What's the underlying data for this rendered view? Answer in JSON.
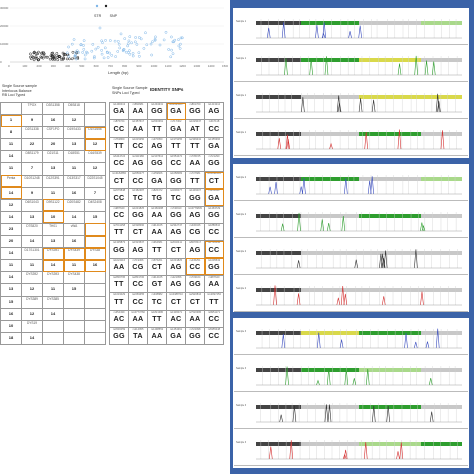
{
  "scatter": {
    "legend": [
      "STR",
      "SNP"
    ],
    "colors": {
      "str": "#1f1f1f",
      "snp": "#7eb6e8"
    },
    "xlabel": "Length (bp)",
    "xticks": [
      "0",
      "100",
      "200",
      "300",
      "400",
      "500",
      "600",
      "700",
      "800",
      "900",
      "1000",
      "1100",
      "1200",
      "1300",
      "1400",
      "1500"
    ],
    "yticks": [
      "30000",
      "20000",
      "10000",
      "0"
    ]
  },
  "identity_title": "IDENTITY SNPs",
  "left_legend": [
    "Single Source sample",
    "Interlocus Balance",
    "RB Loci Typed"
  ],
  "snp_legend": [
    "Single Source Sample",
    "SNPs Loci Typed"
  ],
  "str_grid": [
    [
      {
        "t": "",
        "v": ""
      },
      {
        "t": "TPOX",
        "v": ""
      },
      {
        "t": "D3S1358",
        "v": ""
      },
      {
        "t": "D5S818",
        "v": ""
      },
      {
        "t": "",
        "v": ""
      }
    ],
    [
      {
        "t": "",
        "v": "1"
      },
      {
        "t": "",
        "v": "9"
      },
      {
        "t": "",
        "v": "16"
      },
      {
        "t": "",
        "v": "12"
      },
      {
        "t": "",
        "v": ""
      }
    ],
    [
      {
        "t": "",
        "v": "8"
      },
      {
        "t": "D2S1338",
        "v": ""
      },
      {
        "t": "CSF1PO",
        "v": ""
      },
      {
        "t": "D19S433",
        "v": ""
      },
      {
        "t": "D1S1656",
        "v": ""
      }
    ],
    [
      {
        "t": "",
        "v": "11"
      },
      {
        "t": "",
        "v": "22"
      },
      {
        "t": "",
        "v": "20"
      },
      {
        "t": "",
        "v": "13"
      },
      {
        "t": "",
        "v": "12"
      }
    ],
    [
      {
        "t": "",
        "v": "14"
      },
      {
        "t": "D8S1179",
        "v": ""
      },
      {
        "t": "D21S11",
        "v": ""
      },
      {
        "t": "D18S51",
        "v": ""
      },
      {
        "t": "D16S539",
        "v": ""
      }
    ],
    [
      {
        "t": "",
        "v": "11"
      },
      {
        "t": "",
        "v": "7"
      },
      {
        "t": "",
        "v": "13"
      },
      {
        "t": "",
        "v": "11"
      },
      {
        "t": "",
        "v": "12"
      }
    ],
    [
      {
        "t": "Penta",
        "v": ""
      },
      {
        "t": "D10S1248",
        "v": ""
      },
      {
        "t": "D12S391",
        "v": ""
      },
      {
        "t": "D13S317",
        "v": ""
      },
      {
        "t": "D22S1045",
        "v": ""
      }
    ],
    [
      {
        "t": "",
        "v": "14"
      },
      {
        "t": "",
        "v": "9"
      },
      {
        "t": "",
        "v": "11"
      },
      {
        "t": "",
        "v": "16"
      },
      {
        "t": "",
        "v": "7"
      }
    ],
    [
      {
        "t": "",
        "v": "12"
      },
      {
        "t": "D6S1043",
        "v": ""
      },
      {
        "t": "D9S1122",
        "v": ""
      },
      {
        "t": "D20S482",
        "v": ""
      },
      {
        "t": "D4S2408",
        "v": ""
      }
    ],
    [
      {
        "t": "",
        "v": "14"
      },
      {
        "t": "",
        "v": "13"
      },
      {
        "t": "",
        "v": "10"
      },
      {
        "t": "",
        "v": "14"
      },
      {
        "t": "",
        "v": "15"
      }
    ],
    [
      {
        "t": "",
        "v": "23"
      },
      {
        "t": "D7S820",
        "v": ""
      },
      {
        "t": "TH01",
        "v": ""
      },
      {
        "t": "vWA",
        "v": ""
      },
      {
        "t": "",
        "v": ""
      }
    ],
    [
      {
        "t": "",
        "v": "20"
      },
      {
        "t": "",
        "v": "14"
      },
      {
        "t": "",
        "v": "13"
      },
      {
        "t": "",
        "v": "16"
      },
      {
        "t": "",
        "v": ""
      }
    ],
    [
      {
        "t": "",
        "v": "14"
      },
      {
        "t": "D17S1301",
        "v": ""
      },
      {
        "t": "DYS391",
        "v": ""
      },
      {
        "t": "DYS439",
        "v": ""
      },
      {
        "t": "DYS38",
        "v": ""
      }
    ],
    [
      {
        "t": "",
        "v": "11"
      },
      {
        "t": "",
        "v": "11"
      },
      {
        "t": "",
        "v": "14"
      },
      {
        "t": "",
        "v": "11"
      },
      {
        "t": "",
        "v": "16"
      }
    ],
    [
      {
        "t": "",
        "v": "14"
      },
      {
        "t": "DYS392",
        "v": ""
      },
      {
        "t": "DYS393",
        "v": ""
      },
      {
        "t": "DYS438",
        "v": ""
      },
      {
        "t": "",
        "v": ""
      }
    ],
    [
      {
        "t": "",
        "v": "13"
      },
      {
        "t": "",
        "v": "12"
      },
      {
        "t": "",
        "v": "11"
      },
      {
        "t": "",
        "v": "15"
      },
      {
        "t": "",
        "v": ""
      }
    ],
    [
      {
        "t": "",
        "v": "15"
      },
      {
        "t": "DYS389",
        "v": ""
      },
      {
        "t": "DYS385",
        "v": ""
      },
      {
        "t": "",
        "v": ""
      },
      {
        "t": "",
        "v": ""
      }
    ],
    [
      {
        "t": "",
        "v": "16"
      },
      {
        "t": "",
        "v": "12"
      },
      {
        "t": "",
        "v": "14"
      },
      {
        "t": "",
        "v": ""
      },
      {
        "t": "",
        "v": ""
      }
    ],
    [
      {
        "t": "",
        "v": "10"
      },
      {
        "t": "DYS19",
        "v": ""
      },
      {
        "t": "",
        "v": ""
      },
      {
        "t": "",
        "v": ""
      },
      {
        "t": "",
        "v": ""
      }
    ],
    [
      {
        "t": "",
        "v": "18"
      },
      {
        "t": "",
        "v": "14"
      },
      {
        "t": "",
        "v": ""
      },
      {
        "t": "",
        "v": ""
      },
      {
        "t": "",
        "v": ""
      }
    ]
  ],
  "snp_grid": [
    [
      {
        "t": "rs1490413",
        "v": "GA"
      },
      {
        "t": "rs560681",
        "v": "AA"
      },
      {
        "t": "rs1294331",
        "v": "GG"
      },
      {
        "t": "rs10495407",
        "v": "GA"
      },
      {
        "t": "rs891700",
        "v": "GG"
      },
      {
        "t": "rs1413212",
        "v": "AG"
      }
    ],
    [
      {
        "t": "rs876724",
        "v": "CC"
      },
      {
        "t": "rs1357617",
        "v": "AA"
      },
      {
        "t": "rs2046361",
        "v": "TT"
      },
      {
        "t": "rs717302",
        "v": "GA"
      },
      {
        "t": "rs1029047",
        "v": "AT"
      },
      {
        "t": "rs917118",
        "v": "CC"
      }
    ],
    [
      {
        "t": "rs763869",
        "v": "TT"
      },
      {
        "t": "rs1015250",
        "v": "CC"
      },
      {
        "t": "rs370950",
        "v": "AG"
      },
      {
        "t": "rs1979255",
        "v": "TT"
      },
      {
        "t": "rs2399332",
        "v": "TT"
      },
      {
        "t": "rs1355366",
        "v": "GA"
      }
    ],
    [
      {
        "t": "rs6444724",
        "v": "CC"
      },
      {
        "t": "rs2111980",
        "v": "AG"
      },
      {
        "t": "rs2107612",
        "v": "GG"
      },
      {
        "t": "rs1554472",
        "v": "CC"
      },
      {
        "t": "rs735155",
        "v": "AA"
      },
      {
        "t": "rs721290",
        "v": "GG"
      }
    ],
    [
      {
        "t": "rs13182883",
        "v": "CT"
      },
      {
        "t": "rs2056277",
        "v": "CC"
      },
      {
        "t": "rs159606",
        "v": "GA"
      },
      {
        "t": "rs1058083",
        "v": "GG"
      },
      {
        "t": "rs737681",
        "v": "TT"
      },
      {
        "t": "rs10092491",
        "v": "CT"
      }
    ],
    [
      {
        "t": "rs2076848",
        "v": "CC"
      },
      {
        "t": "rs1382387",
        "v": "TC"
      },
      {
        "t": "rs826472",
        "v": "TG"
      },
      {
        "t": "rs4606077",
        "v": "TC"
      },
      {
        "t": "rs1109037",
        "v": "GG"
      },
      {
        "t": "rs251934",
        "v": "GA"
      }
    ],
    [
      {
        "t": "rs987640",
        "v": "CC"
      },
      {
        "t": "rs1031825",
        "v": "GG"
      },
      {
        "t": "rs1360288",
        "v": "AA"
      },
      {
        "t": "rs740910",
        "v": "GG"
      },
      {
        "t": "rs10776839",
        "v": "AG"
      },
      {
        "t": "rs1463729",
        "v": "GG"
      }
    ],
    [
      {
        "t": "rs7041158",
        "v": "TT"
      },
      {
        "t": "rs1528460",
        "v": "CT"
      },
      {
        "t": "rs914165",
        "v": "AA"
      },
      {
        "t": "rs2342747",
        "v": "AG"
      },
      {
        "t": "rs430046",
        "v": "CG"
      },
      {
        "t": "rs1886510",
        "v": "CC"
      }
    ],
    [
      {
        "t": "rs1335873",
        "v": "GG"
      },
      {
        "t": "rs1523537",
        "v": "AG"
      },
      {
        "t": "rs964681",
        "v": "TT"
      },
      {
        "t": "rs2040411",
        "v": "CT"
      },
      {
        "t": "rs8078417",
        "v": "AG"
      },
      {
        "t": "rs1736442",
        "v": "CC"
      }
    ],
    [
      {
        "t": "rs1024116",
        "v": "AA"
      },
      {
        "t": "rs719366",
        "v": "CG"
      },
      {
        "t": "rs576261",
        "v": "CT"
      },
      {
        "t": "rs1031825",
        "v": "AG"
      },
      {
        "t": "rs445251",
        "v": "CC"
      },
      {
        "t": "rs1005533",
        "v": "GG"
      }
    ],
    [
      {
        "t": "rs2830795",
        "v": "TT"
      },
      {
        "t": "rs2831700",
        "v": "CC"
      },
      {
        "t": "rs914165",
        "v": "GT"
      },
      {
        "t": "rs221956",
        "v": "AG"
      },
      {
        "t": "rs733164",
        "v": "GG"
      },
      {
        "t": "rs987640",
        "v": "AA"
      }
    ],
    [
      {
        "t": "rs1019029",
        "v": "TT"
      },
      {
        "t": "rs2269355",
        "v": "CC"
      },
      {
        "t": "rs338882",
        "v": "TC"
      },
      {
        "t": "rs10488710",
        "v": "CT"
      },
      {
        "t": "rs2920816",
        "v": "CT"
      },
      {
        "t": "rs12997453",
        "v": "TT"
      }
    ],
    [
      {
        "t": "rs354439",
        "v": "AC"
      },
      {
        "t": "rs10773760",
        "v": "AA"
      },
      {
        "t": "rs1821380",
        "v": "TT"
      },
      {
        "t": "rs1336071",
        "v": "AC"
      },
      {
        "t": "rs7520386",
        "v": "AA"
      },
      {
        "t": "rs9951171",
        "v": "CC"
      }
    ],
    [
      {
        "t": "rs4530059",
        "v": "GG"
      },
      {
        "t": "rs214955",
        "v": "TA"
      },
      {
        "t": "rs1498553",
        "v": "AA"
      },
      {
        "t": "rs1454361",
        "v": "GA"
      },
      {
        "t": "rs722098",
        "v": "GG"
      },
      {
        "t": "rs6955448",
        "v": "CC"
      }
    ]
  ],
  "traces": {
    "section1": [
      {
        "label": "Sample 1",
        "bar_colors": [
          "#444",
          "#2e9e2e",
          "#c8c8c8",
          "#a9d98a"
        ],
        "peak_color": "#3a4dbf"
      },
      {
        "label": "Sample 1",
        "bar_colors": [
          "#444",
          "#2e9e2e",
          "#d9d94a",
          "#c8c8c8"
        ],
        "peak_color": "#2e9e2e"
      },
      {
        "label": "Sample 1",
        "bar_colors": [
          "#444",
          "#c8c8c8",
          "#d9d94a",
          "#d9d94a"
        ],
        "peak_color": "#333333"
      },
      {
        "label": "Sample 1",
        "bar_colors": [
          "#444",
          "#c8c8c8",
          "#2e9e2e",
          "#c8c8c8"
        ],
        "peak_color": "#d43030"
      }
    ],
    "section2": [
      {
        "label": "Sample 2",
        "bar_colors": [
          "#444",
          "#2e9e2e",
          "#c8c8c8",
          "#a9d98a"
        ],
        "peak_color": "#3a4dbf"
      },
      {
        "label": "Sample 2",
        "bar_colors": [
          "#444",
          "#c8c8c8",
          "#2e9e2e",
          "#c8c8c8"
        ],
        "peak_color": "#2e9e2e"
      },
      {
        "label": "Sample 2",
        "bar_colors": [
          "#444",
          "#c8c8c8",
          "#c8c8c8",
          "#c8c8c8"
        ],
        "peak_color": "#333333"
      },
      {
        "label": "Sample 2",
        "bar_colors": [
          "#444",
          "#c8c8c8",
          "#c8c8c8",
          "#c8c8c8"
        ],
        "peak_color": "#d43030"
      }
    ],
    "section3": [
      {
        "label": "Sample 3",
        "bar_colors": [
          "#444",
          "#d9d94a",
          "#2e9e2e",
          "#c8c8c8"
        ],
        "peak_color": "#3a4dbf"
      },
      {
        "label": "Sample 3",
        "bar_colors": [
          "#444",
          "#2e9e2e",
          "#a9d98a",
          "#c8c8c8"
        ],
        "peak_color": "#2e9e2e"
      },
      {
        "label": "Sample 3",
        "bar_colors": [
          "#444",
          "#c8c8c8",
          "#2e9e2e",
          "#c8c8c8"
        ],
        "peak_color": "#333333"
      },
      {
        "label": "Sample 3",
        "bar_colors": [
          "#444",
          "#c8c8c8",
          "#a9d98a",
          "#2e9e2e"
        ],
        "peak_color": "#d43030"
      }
    ]
  },
  "colors": {
    "panel_border": "#3b63a8",
    "highlight": "#e08a1c"
  }
}
